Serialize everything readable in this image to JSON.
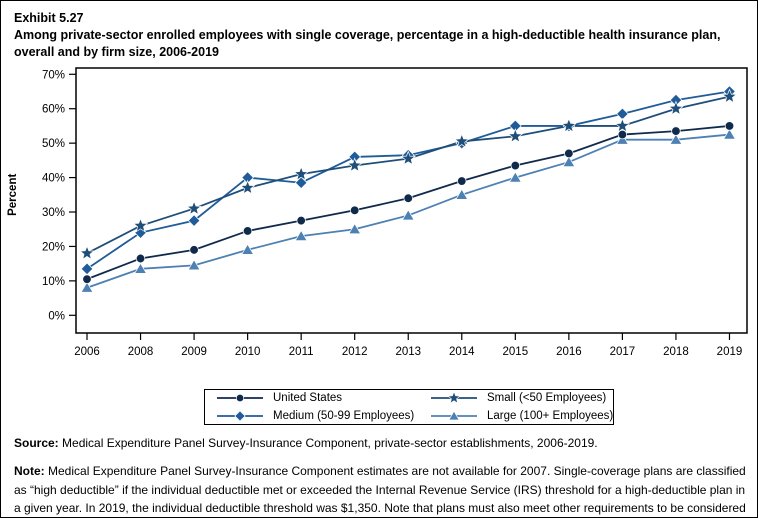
{
  "header": {
    "exhibit": "Exhibit 5.27",
    "title": "Among private-sector enrolled employees with single coverage, percentage in a high-deductible health insurance plan, overall and by firm size, 2006-2019"
  },
  "chart_data": {
    "type": "line",
    "title": "",
    "xlabel": "",
    "ylabel": "Percent",
    "ylim": [
      0,
      70
    ],
    "ytick_step": 10,
    "ytick_suffix": "%",
    "grid": false,
    "legend_position": "bottom-box",
    "categories": [
      "2006",
      "2008",
      "2009",
      "2010",
      "2011",
      "2012",
      "2013",
      "2014",
      "2015",
      "2016",
      "2017",
      "2018",
      "2019"
    ],
    "series": [
      {
        "name": "United States",
        "marker": "circle",
        "color": "#102a4c",
        "values": [
          10.5,
          16.5,
          19,
          24.5,
          27.5,
          30.5,
          34,
          39,
          43.5,
          47,
          52.5,
          53.5,
          55
        ]
      },
      {
        "name": "Small (<50 Employees)",
        "marker": "star",
        "color": "#1f4e79",
        "values": [
          18,
          26,
          31,
          37,
          41,
          43.5,
          45.5,
          50.5,
          52,
          55,
          55,
          60,
          63.5
        ]
      },
      {
        "name": "Medium (50-99 Employees)",
        "marker": "diamond",
        "color": "#1f5c99",
        "values": [
          13.5,
          24,
          27.5,
          40,
          38.5,
          46,
          46.5,
          50,
          55,
          55,
          58.5,
          62.5,
          65
        ]
      },
      {
        "name": "Large (100+ Employees)",
        "marker": "triangle",
        "color": "#4d80b3",
        "values": [
          8,
          13.5,
          14.5,
          19,
          23,
          25,
          29,
          35,
          40,
          44.5,
          51,
          51,
          52.5
        ]
      }
    ],
    "legend_display_order": [
      0,
      1,
      2,
      3
    ],
    "draw_order": [
      2,
      3,
      0,
      1
    ],
    "note": "2007 estimates not available"
  },
  "footnotes": {
    "source_label": "Source:",
    "source_text": " Medical Expenditure Panel Survey-Insurance Component, private-sector establishments, 2006-2019.",
    "note_label": "Note:",
    "note_text": " Medical Expenditure Panel Survey-Insurance Component estimates are not available for 2007. Single-coverage plans are classified as “high deductible” if the individual deductible met or exceeded the Internal Revenue Service (IRS) threshold for a high-deductible plan in a given year. In 2019, the individual deductible threshold was $1,350. Note that plans must also meet other requirements to be considered a high-deductible plan by the IRS."
  }
}
